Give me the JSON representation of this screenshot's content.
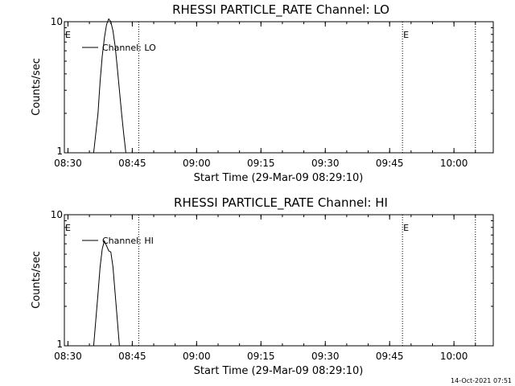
{
  "chart_data": [
    {
      "type": "line",
      "title": "RHESSI PARTICLE_RATE Channel: LO",
      "xlabel": "Start Time (29-Mar-09 08:29:10)",
      "ylabel": "Counts/sec",
      "yscale": "log",
      "ylim": [
        1,
        10
      ],
      "yticks": [
        "1",
        "10"
      ],
      "xlim": [
        "08:29:10",
        "10:09:10"
      ],
      "xticks": [
        "08:30",
        "08:45",
        "09:00",
        "09:15",
        "09:30",
        "09:45",
        "10:00"
      ],
      "series": [
        {
          "name": "Channel: LO",
          "x": [
            "08:36",
            "08:37",
            "08:37:30",
            "08:38",
            "08:38:30",
            "08:39",
            "08:39:30",
            "08:40",
            "08:40:30",
            "08:41",
            "08:41:30",
            "08:42",
            "08:42:30",
            "08:43",
            "08:43:30"
          ],
          "y": [
            1.0,
            2.0,
            3.5,
            5.5,
            7.5,
            9.5,
            10.5,
            10.0,
            8.5,
            6.5,
            4.5,
            3.0,
            2.0,
            1.4,
            1.0
          ]
        }
      ],
      "vlines": [
        {
          "x": "08:46:30",
          "label": ""
        },
        {
          "x": "09:48",
          "label": "E"
        },
        {
          "x": "10:05",
          "label": ""
        }
      ],
      "edge_label": "E"
    },
    {
      "type": "line",
      "title": "RHESSI PARTICLE_RATE Channel: HI",
      "xlabel": "Start Time (29-Mar-09 08:29:10)",
      "ylabel": "Counts/sec",
      "yscale": "log",
      "ylim": [
        1,
        10
      ],
      "yticks": [
        "1",
        "10"
      ],
      "xlim": [
        "08:29:10",
        "10:09:10"
      ],
      "xticks": [
        "08:30",
        "08:45",
        "09:00",
        "09:15",
        "09:30",
        "09:45",
        "10:00"
      ],
      "series": [
        {
          "name": "Channel: HI",
          "x": [
            "08:36",
            "08:37",
            "08:37:30",
            "08:38",
            "08:38:30",
            "08:39",
            "08:39:30",
            "08:40",
            "08:40:30",
            "08:41",
            "08:41:30",
            "08:42"
          ],
          "y": [
            1.0,
            2.5,
            4.0,
            5.5,
            6.3,
            5.8,
            5.3,
            5.2,
            4.0,
            2.5,
            1.6,
            1.0
          ]
        }
      ],
      "vlines": [
        {
          "x": "08:46:30",
          "label": ""
        },
        {
          "x": "09:48",
          "label": "E"
        },
        {
          "x": "10:05",
          "label": ""
        }
      ],
      "edge_label": "E"
    }
  ],
  "footer": {
    "timestamp": "14-Oct-2021 07:51"
  }
}
